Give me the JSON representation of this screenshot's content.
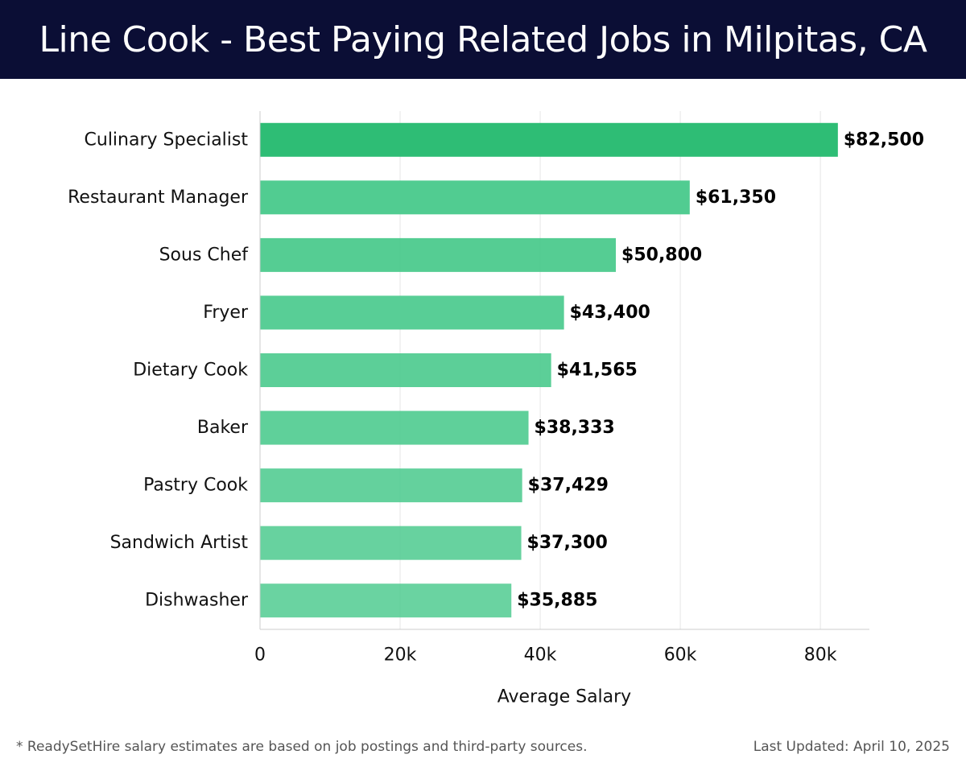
{
  "header": {
    "title": "Line Cook - Best Paying Related Jobs in Milpitas, CA"
  },
  "chart_data": {
    "type": "bar",
    "orientation": "horizontal",
    "categories": [
      "Culinary Specialist",
      "Restaurant Manager",
      "Sous Chef",
      "Fryer",
      "Dietary Cook",
      "Baker",
      "Pastry Cook",
      "Sandwich Artist",
      "Dishwasher"
    ],
    "values": [
      82500,
      61350,
      50800,
      43400,
      41565,
      38333,
      37429,
      37300,
      35885
    ],
    "value_labels": [
      "$82,500",
      "$61,350",
      "$50,800",
      "$43,400",
      "$41,565",
      "$38,333",
      "$37,429",
      "$37,300",
      "$35,885"
    ],
    "xlabel": "Average Salary",
    "ylabel": "",
    "xlim": [
      0,
      87000
    ],
    "ticks": [
      0,
      20000,
      40000,
      60000,
      80000
    ],
    "tick_labels": [
      "0",
      "20k",
      "40k",
      "60k",
      "80k"
    ],
    "grid": true,
    "colors": {
      "top_bar": "#2ebd75",
      "bars": "#4ecb8f",
      "grid": "#e6e6e6",
      "axis": "#cccccc"
    }
  },
  "footer": {
    "note": "* ReadySetHire salary estimates are based on job postings and third-party sources.",
    "updated": "Last Updated: April 10, 2025"
  }
}
